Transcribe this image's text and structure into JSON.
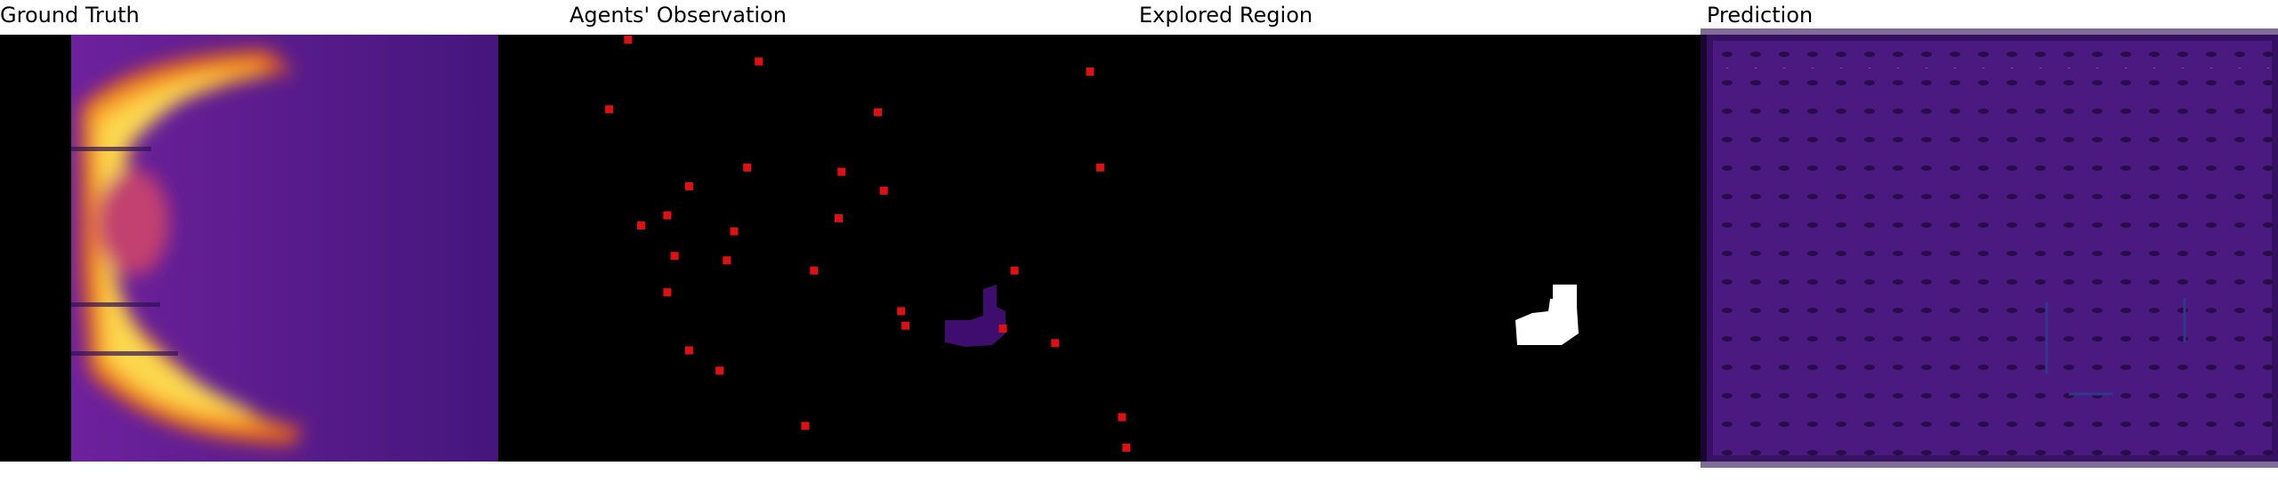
{
  "panels": [
    {
      "title": "Ground Truth"
    },
    {
      "title": "Agents' Observation"
    },
    {
      "title": "Explored Region"
    },
    {
      "title": "Prediction"
    }
  ]
}
